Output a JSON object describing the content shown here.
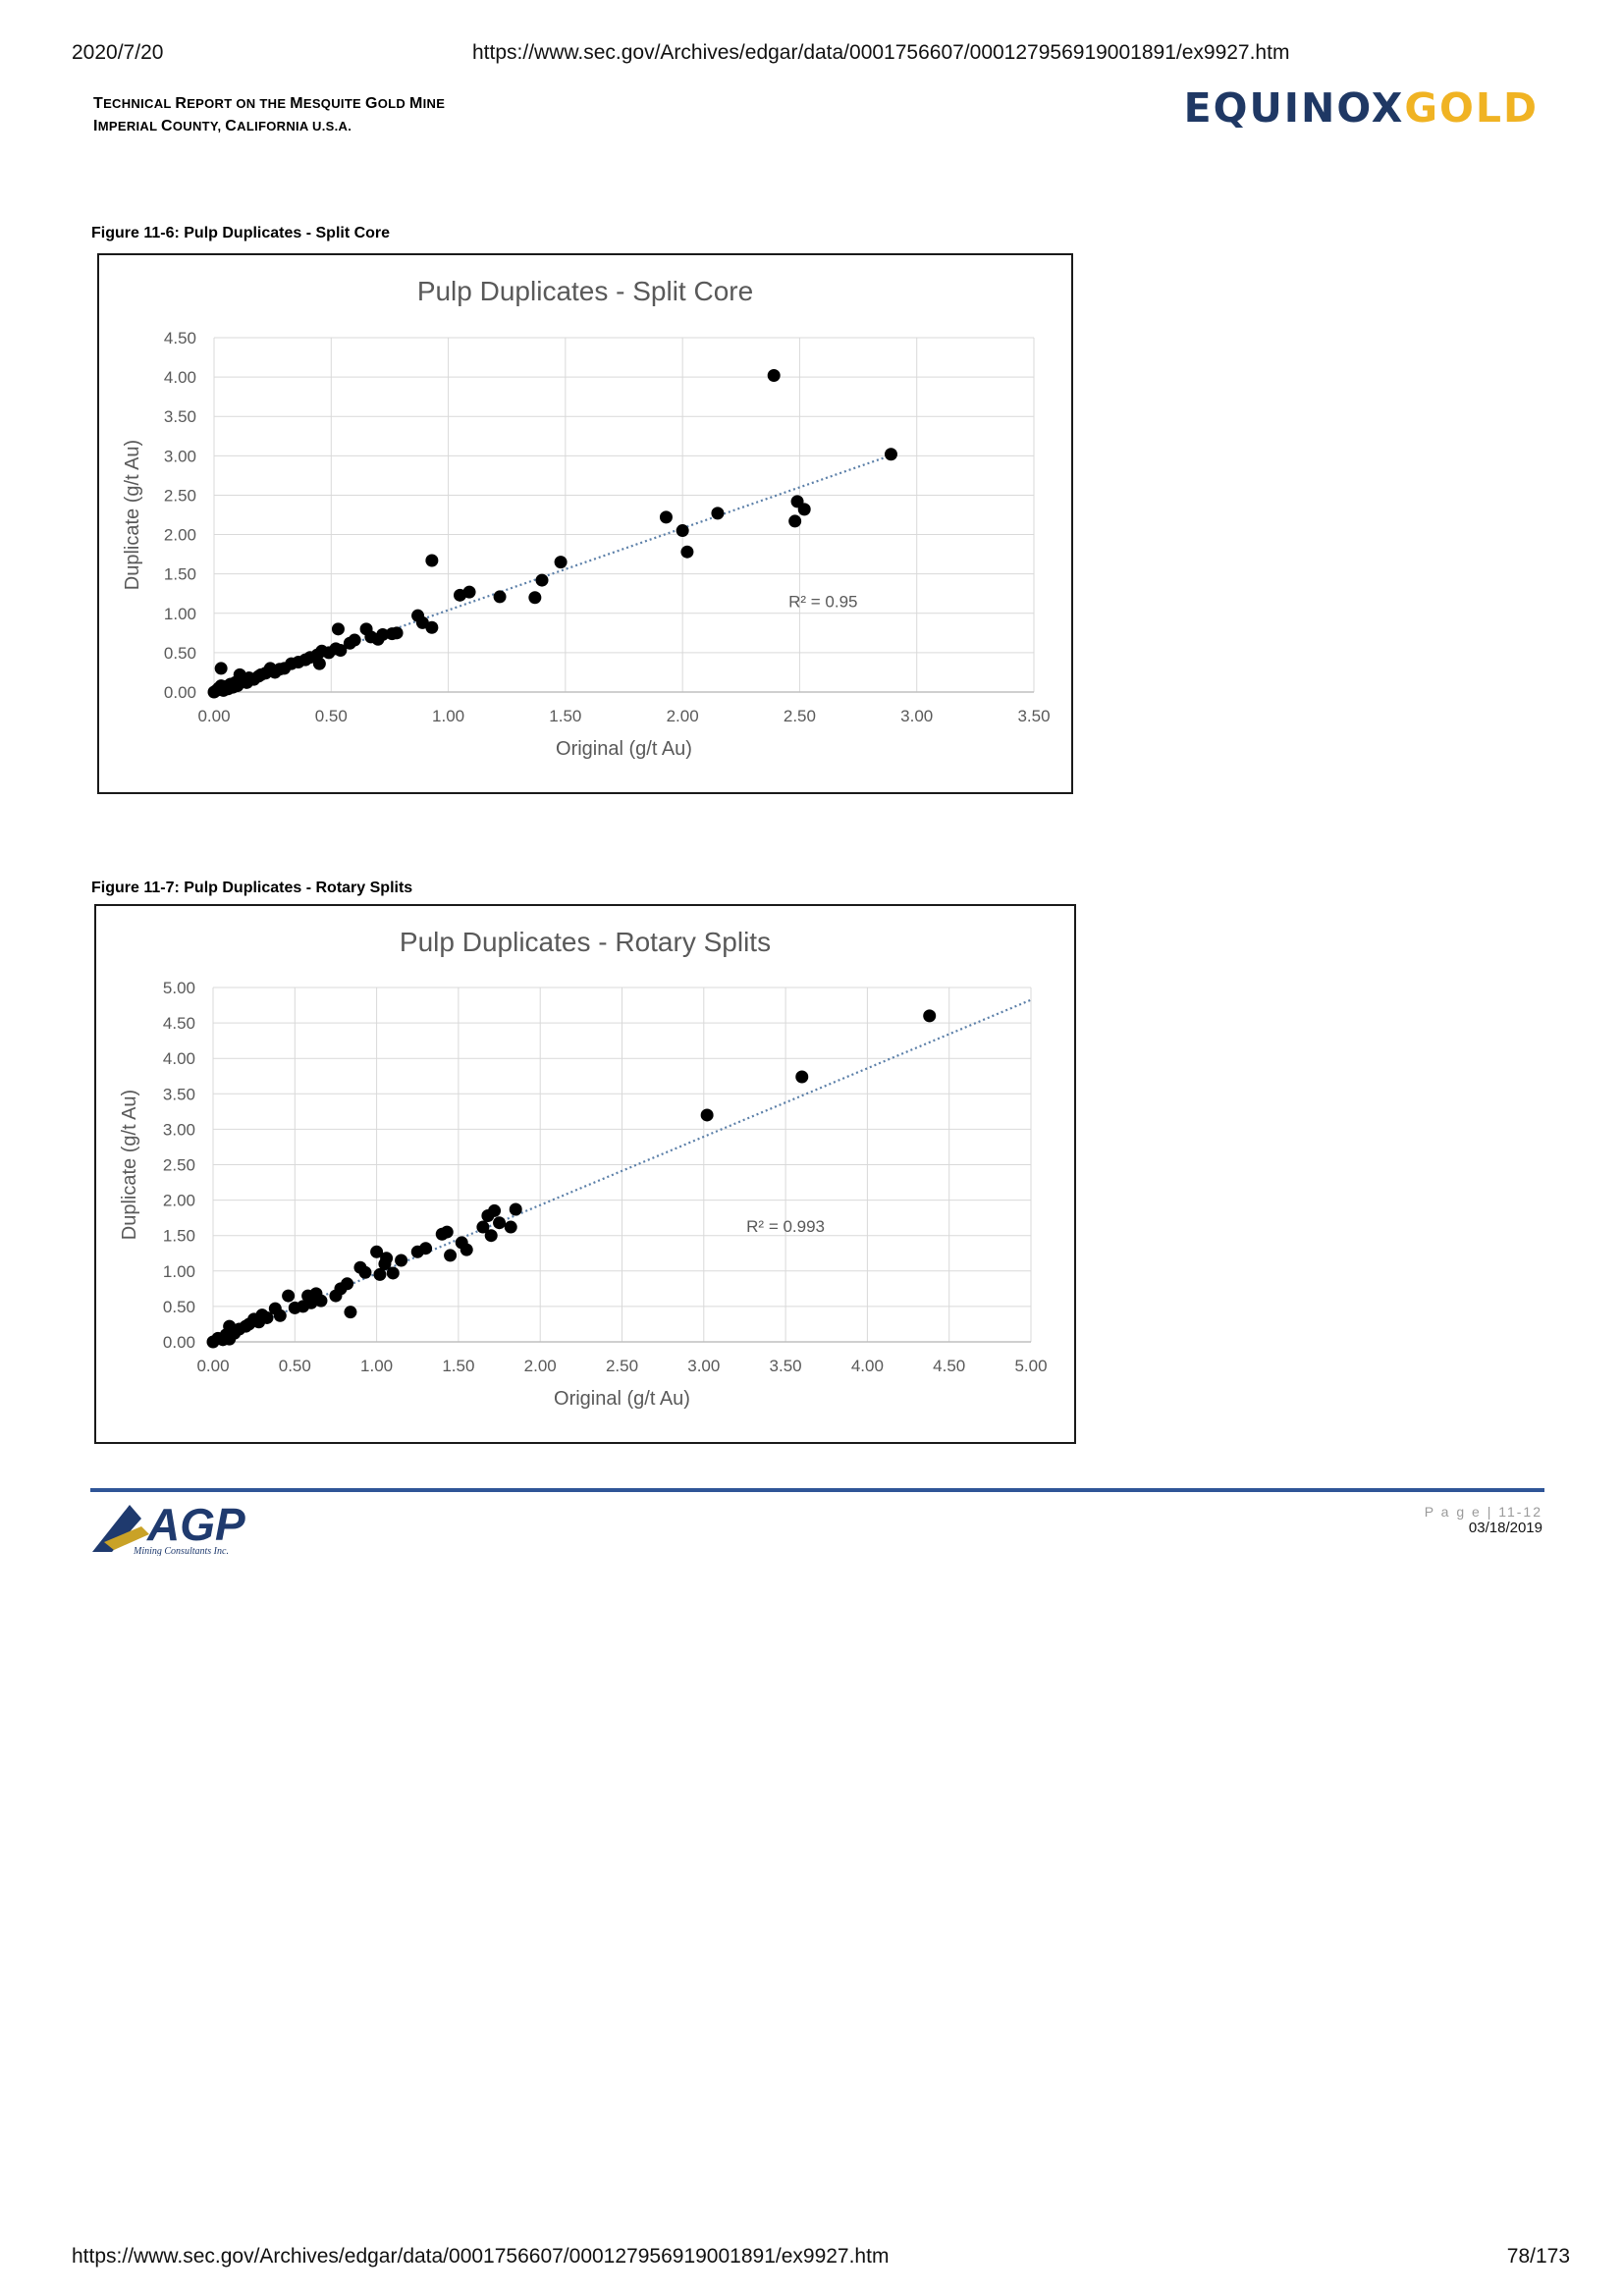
{
  "print_header": {
    "date": "2020/7/20",
    "url": "https://www.sec.gov/Archives/edgar/data/0001756607/000127956919001891/ex9927.htm"
  },
  "report": {
    "title_line1_lead": "T",
    "title_line1_rest": "ECHNICAL ",
    "title_line1_r2": "R",
    "title_line1_rest2": "EPORT ON THE ",
    "title_line1_m": "M",
    "title_line1_rest3": "ESQUITE ",
    "title_line1_g": "G",
    "title_line1_rest4": "OLD ",
    "title_line1_m2": "M",
    "title_line1_rest5": "INE",
    "title_line2_i": "I",
    "title_line2_rest": "MPERIAL ",
    "title_line2_c": "C",
    "title_line2_rest2": "OUNTY, ",
    "title_line2_c2": "C",
    "title_line2_rest3": "ALIFORNIA U.S.A."
  },
  "logo": {
    "part1": "EQUINOX",
    "part2": "GOLD",
    "color1": "#1f3864",
    "color2": "#f0b323"
  },
  "footer_logo": {
    "main": "AGP",
    "sub": "Mining Consultants Inc."
  },
  "figures": [
    {
      "caption": "Figure 11-6: Pulp Duplicates - Split Core"
    },
    {
      "caption": "Figure 11-7: Pulp Duplicates - Rotary Splits"
    }
  ],
  "chart_data": [
    {
      "type": "scatter",
      "title": "Pulp Duplicates - Split Core",
      "xlabel": "Original (g/t Au)",
      "ylabel": "Duplicate (g/t Au)",
      "xlim": [
        0,
        3.5
      ],
      "ylim": [
        0,
        4.5
      ],
      "xticks": [
        "0.00",
        "0.50",
        "1.00",
        "1.50",
        "2.00",
        "2.50",
        "3.00",
        "3.50"
      ],
      "yticks": [
        "0.00",
        "0.50",
        "1.00",
        "1.50",
        "2.00",
        "2.50",
        "3.00",
        "3.50",
        "4.00",
        "4.50"
      ],
      "xstep": 0.5,
      "ystep": 0.5,
      "grid": true,
      "annotation": "R² = 0.95",
      "trendline": {
        "slope": 1.04,
        "intercept": 0.0,
        "x_end": 2.9
      },
      "points": [
        [
          0.0,
          0.0
        ],
        [
          0.01,
          0.02
        ],
        [
          0.02,
          0.05
        ],
        [
          0.03,
          0.08
        ],
        [
          0.03,
          0.3
        ],
        [
          0.04,
          0.02
        ],
        [
          0.05,
          0.07
        ],
        [
          0.06,
          0.04
        ],
        [
          0.07,
          0.1
        ],
        [
          0.08,
          0.06
        ],
        [
          0.09,
          0.12
        ],
        [
          0.1,
          0.08
        ],
        [
          0.11,
          0.22
        ],
        [
          0.12,
          0.14
        ],
        [
          0.14,
          0.12
        ],
        [
          0.15,
          0.18
        ],
        [
          0.17,
          0.16
        ],
        [
          0.19,
          0.2
        ],
        [
          0.2,
          0.22
        ],
        [
          0.22,
          0.24
        ],
        [
          0.24,
          0.3
        ],
        [
          0.26,
          0.25
        ],
        [
          0.28,
          0.29
        ],
        [
          0.3,
          0.3
        ],
        [
          0.33,
          0.36
        ],
        [
          0.36,
          0.38
        ],
        [
          0.39,
          0.41
        ],
        [
          0.41,
          0.44
        ],
        [
          0.44,
          0.47
        ],
        [
          0.45,
          0.36
        ],
        [
          0.46,
          0.52
        ],
        [
          0.49,
          0.5
        ],
        [
          0.52,
          0.55
        ],
        [
          0.53,
          0.8
        ],
        [
          0.54,
          0.53
        ],
        [
          0.58,
          0.62
        ],
        [
          0.6,
          0.66
        ],
        [
          0.65,
          0.8
        ],
        [
          0.67,
          0.7
        ],
        [
          0.7,
          0.67
        ],
        [
          0.72,
          0.73
        ],
        [
          0.76,
          0.74
        ],
        [
          0.78,
          0.75
        ],
        [
          0.87,
          0.97
        ],
        [
          0.89,
          0.88
        ],
        [
          0.93,
          1.67
        ],
        [
          0.93,
          0.82
        ],
        [
          1.05,
          1.23
        ],
        [
          1.09,
          1.27
        ],
        [
          1.22,
          1.21
        ],
        [
          1.37,
          1.2
        ],
        [
          1.4,
          1.42
        ],
        [
          1.48,
          1.65
        ],
        [
          1.93,
          2.22
        ],
        [
          2.0,
          2.05
        ],
        [
          2.02,
          1.78
        ],
        [
          2.15,
          2.27
        ],
        [
          2.39,
          4.02
        ],
        [
          2.48,
          2.17
        ],
        [
          2.49,
          2.42
        ],
        [
          2.52,
          2.32
        ],
        [
          2.89,
          3.02
        ]
      ]
    },
    {
      "type": "scatter",
      "title": "Pulp Duplicates - Rotary Splits",
      "xlabel": "Original (g/t Au)",
      "ylabel": "Duplicate (g/t Au)",
      "xlim": [
        0,
        5
      ],
      "ylim": [
        0,
        5
      ],
      "xticks": [
        "0.00",
        "0.50",
        "1.00",
        "1.50",
        "2.00",
        "2.50",
        "3.00",
        "3.50",
        "4.00",
        "4.50",
        "5.00"
      ],
      "yticks": [
        "0.00",
        "0.50",
        "1.00",
        "1.50",
        "2.00",
        "2.50",
        "3.00",
        "3.50",
        "4.00",
        "4.50",
        "5.00"
      ],
      "xstep": 0.5,
      "ystep": 0.5,
      "grid": true,
      "annotation": "R² = 0.993",
      "trendline": {
        "slope": 0.965,
        "intercept": 0.0,
        "x_end": 5.0
      },
      "points": [
        [
          0.0,
          0.0
        ],
        [
          0.03,
          0.05
        ],
        [
          0.06,
          0.03
        ],
        [
          0.08,
          0.1
        ],
        [
          0.1,
          0.04
        ],
        [
          0.1,
          0.22
        ],
        [
          0.13,
          0.12
        ],
        [
          0.16,
          0.18
        ],
        [
          0.2,
          0.22
        ],
        [
          0.22,
          0.25
        ],
        [
          0.25,
          0.32
        ],
        [
          0.28,
          0.28
        ],
        [
          0.3,
          0.38
        ],
        [
          0.33,
          0.34
        ],
        [
          0.38,
          0.47
        ],
        [
          0.41,
          0.37
        ],
        [
          0.46,
          0.65
        ],
        [
          0.5,
          0.48
        ],
        [
          0.55,
          0.5
        ],
        [
          0.58,
          0.65
        ],
        [
          0.6,
          0.55
        ],
        [
          0.63,
          0.68
        ],
        [
          0.66,
          0.58
        ],
        [
          0.75,
          0.65
        ],
        [
          0.78,
          0.75
        ],
        [
          0.82,
          0.82
        ],
        [
          0.84,
          0.42
        ],
        [
          0.9,
          1.05
        ],
        [
          0.93,
          0.98
        ],
        [
          1.0,
          1.27
        ],
        [
          1.02,
          0.95
        ],
        [
          1.05,
          1.1
        ],
        [
          1.06,
          1.18
        ],
        [
          1.1,
          0.97
        ],
        [
          1.15,
          1.15
        ],
        [
          1.25,
          1.27
        ],
        [
          1.3,
          1.32
        ],
        [
          1.4,
          1.52
        ],
        [
          1.43,
          1.55
        ],
        [
          1.45,
          1.22
        ],
        [
          1.52,
          1.4
        ],
        [
          1.55,
          1.3
        ],
        [
          1.65,
          1.62
        ],
        [
          1.68,
          1.78
        ],
        [
          1.7,
          1.5
        ],
        [
          1.72,
          1.85
        ],
        [
          1.75,
          1.68
        ],
        [
          1.82,
          1.62
        ],
        [
          1.85,
          1.87
        ],
        [
          3.02,
          3.2
        ],
        [
          3.6,
          3.74
        ],
        [
          4.38,
          4.6
        ]
      ]
    }
  ],
  "footer": {
    "page": "P a g e | 11-12",
    "date": "03/18/2019"
  },
  "print_footer": {
    "url": "https://www.sec.gov/Archives/edgar/data/0001756607/000127956919001891/ex9927.htm",
    "page_count": "78/173"
  }
}
